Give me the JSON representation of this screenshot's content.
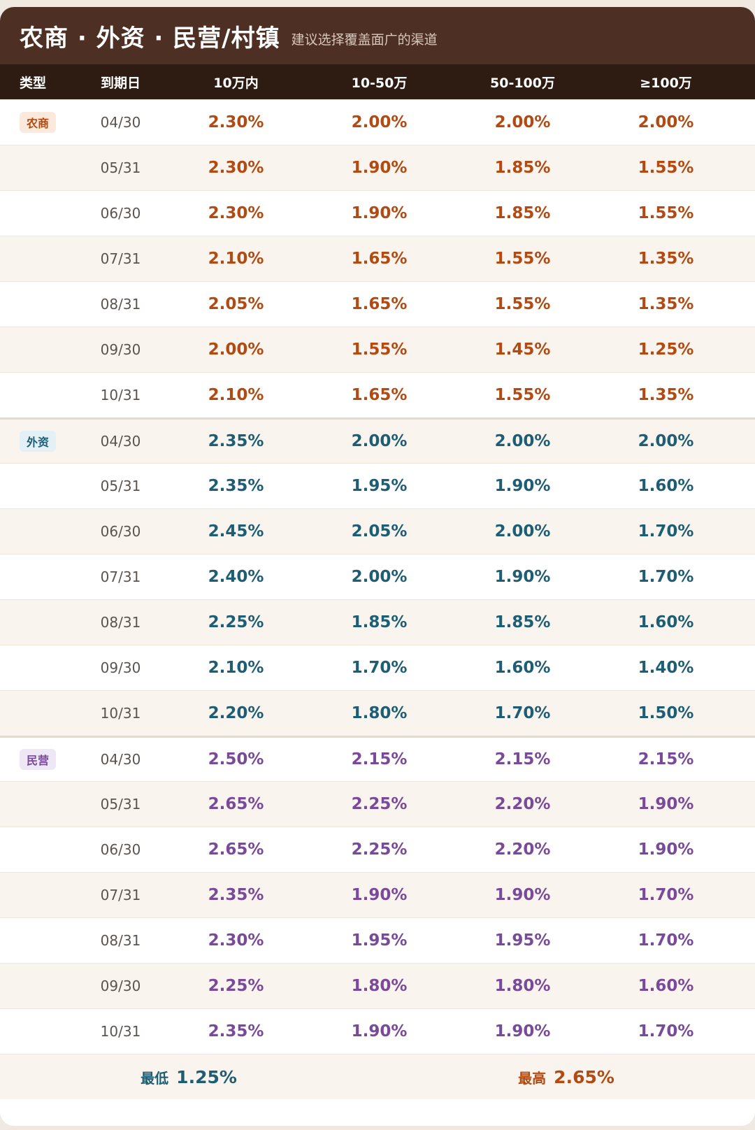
{
  "header": {
    "title": "农商 · 外资 · 民营/村镇",
    "subtitle": "建议选择覆盖面广的渠道"
  },
  "columns": [
    "类型",
    "到期日",
    "10万内",
    "10-50万",
    "50-100万",
    "≥100万"
  ],
  "colors": {
    "nongshang_text": "#b24a12",
    "nongshang_badge_bg": "#fbe9dc",
    "waizi_text": "#1e5e74",
    "waizi_badge_bg": "#e3f0f5",
    "minying_text": "#7a4a9a",
    "minying_badge_bg": "#eee8f6"
  },
  "groups": [
    {
      "type": "农商",
      "rows": [
        {
          "date": "04/30",
          "rates": [
            "2.30%",
            "2.00%",
            "2.00%",
            "2.00%"
          ]
        },
        {
          "date": "05/31",
          "rates": [
            "2.30%",
            "1.90%",
            "1.85%",
            "1.55%"
          ]
        },
        {
          "date": "06/30",
          "rates": [
            "2.30%",
            "1.90%",
            "1.85%",
            "1.55%"
          ]
        },
        {
          "date": "07/31",
          "rates": [
            "2.10%",
            "1.65%",
            "1.55%",
            "1.35%"
          ]
        },
        {
          "date": "08/31",
          "rates": [
            "2.05%",
            "1.65%",
            "1.55%",
            "1.35%"
          ]
        },
        {
          "date": "09/30",
          "rates": [
            "2.00%",
            "1.55%",
            "1.45%",
            "1.25%"
          ]
        },
        {
          "date": "10/31",
          "rates": [
            "2.10%",
            "1.65%",
            "1.55%",
            "1.35%"
          ]
        }
      ]
    },
    {
      "type": "外资",
      "rows": [
        {
          "date": "04/30",
          "rates": [
            "2.35%",
            "2.00%",
            "2.00%",
            "2.00%"
          ]
        },
        {
          "date": "05/31",
          "rates": [
            "2.35%",
            "1.95%",
            "1.90%",
            "1.60%"
          ]
        },
        {
          "date": "06/30",
          "rates": [
            "2.45%",
            "2.05%",
            "2.00%",
            "1.70%"
          ]
        },
        {
          "date": "07/31",
          "rates": [
            "2.40%",
            "2.00%",
            "1.90%",
            "1.70%"
          ]
        },
        {
          "date": "08/31",
          "rates": [
            "2.25%",
            "1.85%",
            "1.85%",
            "1.60%"
          ]
        },
        {
          "date": "09/30",
          "rates": [
            "2.10%",
            "1.70%",
            "1.60%",
            "1.40%"
          ]
        },
        {
          "date": "10/31",
          "rates": [
            "2.20%",
            "1.80%",
            "1.70%",
            "1.50%"
          ]
        }
      ]
    },
    {
      "type": "民营",
      "rows": [
        {
          "date": "04/30",
          "rates": [
            "2.50%",
            "2.15%",
            "2.15%",
            "2.15%"
          ]
        },
        {
          "date": "05/31",
          "rates": [
            "2.65%",
            "2.25%",
            "2.20%",
            "1.90%"
          ]
        },
        {
          "date": "06/30",
          "rates": [
            "2.65%",
            "2.25%",
            "2.20%",
            "1.90%"
          ]
        },
        {
          "date": "07/31",
          "rates": [
            "2.35%",
            "1.90%",
            "1.90%",
            "1.70%"
          ]
        },
        {
          "date": "08/31",
          "rates": [
            "2.30%",
            "1.95%",
            "1.95%",
            "1.70%"
          ]
        },
        {
          "date": "09/30",
          "rates": [
            "2.25%",
            "1.80%",
            "1.80%",
            "1.60%"
          ]
        },
        {
          "date": "10/31",
          "rates": [
            "2.35%",
            "1.90%",
            "1.90%",
            "1.70%"
          ]
        }
      ]
    }
  ],
  "footer": {
    "min_label": "最低",
    "min_value": "1.25%",
    "max_label": "最高",
    "max_value": "2.65%"
  }
}
